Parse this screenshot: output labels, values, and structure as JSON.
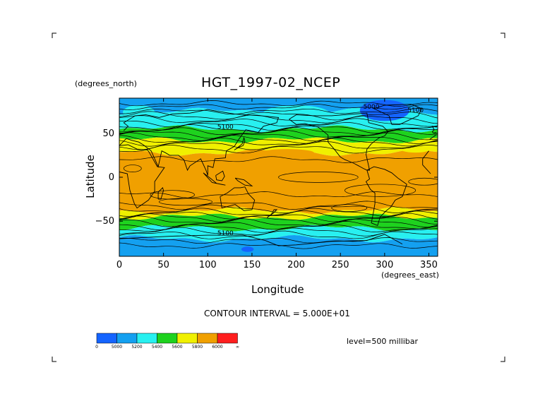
{
  "page": {
    "title": "HGT_1997-02_NCEP",
    "y_units": "(degrees_north)",
    "x_units": "(degrees_east)",
    "xlabel": "Longitude",
    "ylabel": "Latitude",
    "contour_note": "CONTOUR INTERVAL = 5.000E+01",
    "level_note": "level=500 millibar"
  },
  "chart_data": {
    "type": "heatmap",
    "title": "HGT_1997-02_NCEP",
    "xlabel": "Longitude",
    "ylabel": "Latitude",
    "x_units": "(degrees_east)",
    "y_units": "(degrees_north)",
    "xlim": [
      0,
      360
    ],
    "ylim": [
      -90,
      90
    ],
    "x_ticks": [
      0,
      50,
      100,
      150,
      200,
      250,
      300,
      350
    ],
    "y_ticks": [
      50,
      0,
      -50
    ],
    "contour_interval": 50,
    "level": "500 millibar",
    "contour_labels": [
      "5100",
      "5100",
      "5000",
      "5100"
    ],
    "colorbar": {
      "tick_labels": [
        "0",
        "5000",
        "5200",
        "5400",
        "5600",
        "5800",
        "6000",
        "∞"
      ],
      "colors": [
        "#1464ff",
        "#14a0f0",
        "#28f0f0",
        "#1ed21e",
        "#f0f000",
        "#f0a000",
        "#ff1e1e"
      ]
    },
    "bands": [
      {
        "lat_top": 90,
        "lat_bottom": 75,
        "value": "5000-5200"
      },
      {
        "lat_top": 75,
        "lat_bottom": 55,
        "value": "5200-5400"
      },
      {
        "lat_top": 55,
        "lat_bottom": 42,
        "value": "5400-5600"
      },
      {
        "lat_top": 42,
        "lat_bottom": 28,
        "value": "5600-5800"
      },
      {
        "lat_top": 28,
        "lat_bottom": -38,
        "value": "5800-6000"
      },
      {
        "lat_top": -38,
        "lat_bottom": -45,
        "value": "5600-5800"
      },
      {
        "lat_top": -45,
        "lat_bottom": -58,
        "value": "5400-5600"
      },
      {
        "lat_top": -58,
        "lat_bottom": -70,
        "value": "5200-5400"
      },
      {
        "lat_top": -70,
        "lat_bottom": -90,
        "value": "5000-5200"
      }
    ]
  }
}
